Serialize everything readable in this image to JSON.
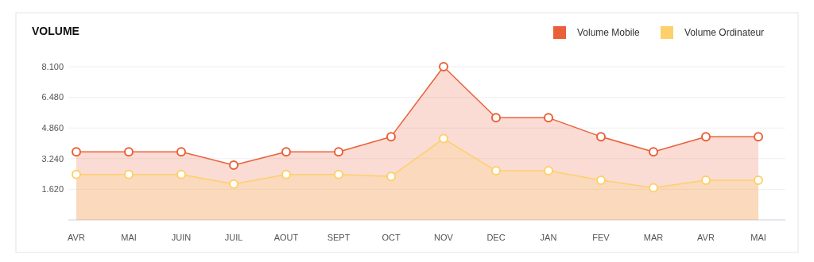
{
  "chart_data": {
    "type": "area",
    "title": "VOLUME",
    "categories": [
      "AVR",
      "MAI",
      "JUIN",
      "JUIL",
      "AOUT",
      "SEPT",
      "OCT",
      "NOV",
      "DEC",
      "JAN",
      "FEV",
      "MAR",
      "AVR",
      "MAI"
    ],
    "series": [
      {
        "name": "Volume Mobile",
        "color": "#e9603a",
        "values": [
          3600,
          3600,
          3600,
          2900,
          3600,
          3600,
          4400,
          8100,
          5400,
          5400,
          4400,
          3600,
          4400,
          4400
        ]
      },
      {
        "name": "Volume Ordinateur",
        "color": "#fdd06b",
        "values": [
          2400,
          2400,
          2400,
          1900,
          2400,
          2400,
          2300,
          4300,
          2600,
          2600,
          2100,
          1700,
          2100,
          2100
        ]
      }
    ],
    "ylim": [
      0,
      8100
    ],
    "yticks": [
      {
        "value": 0,
        "label": null
      },
      {
        "value": 1620,
        "label": "1.620"
      },
      {
        "value": 3240,
        "label": "3.240"
      },
      {
        "value": 4860,
        "label": "4.860"
      },
      {
        "value": 6480,
        "label": "6.480"
      },
      {
        "value": 8100,
        "label": "8.100"
      }
    ],
    "grid": "y",
    "legend": "top right",
    "marker": "circle",
    "line_style": "solid"
  }
}
